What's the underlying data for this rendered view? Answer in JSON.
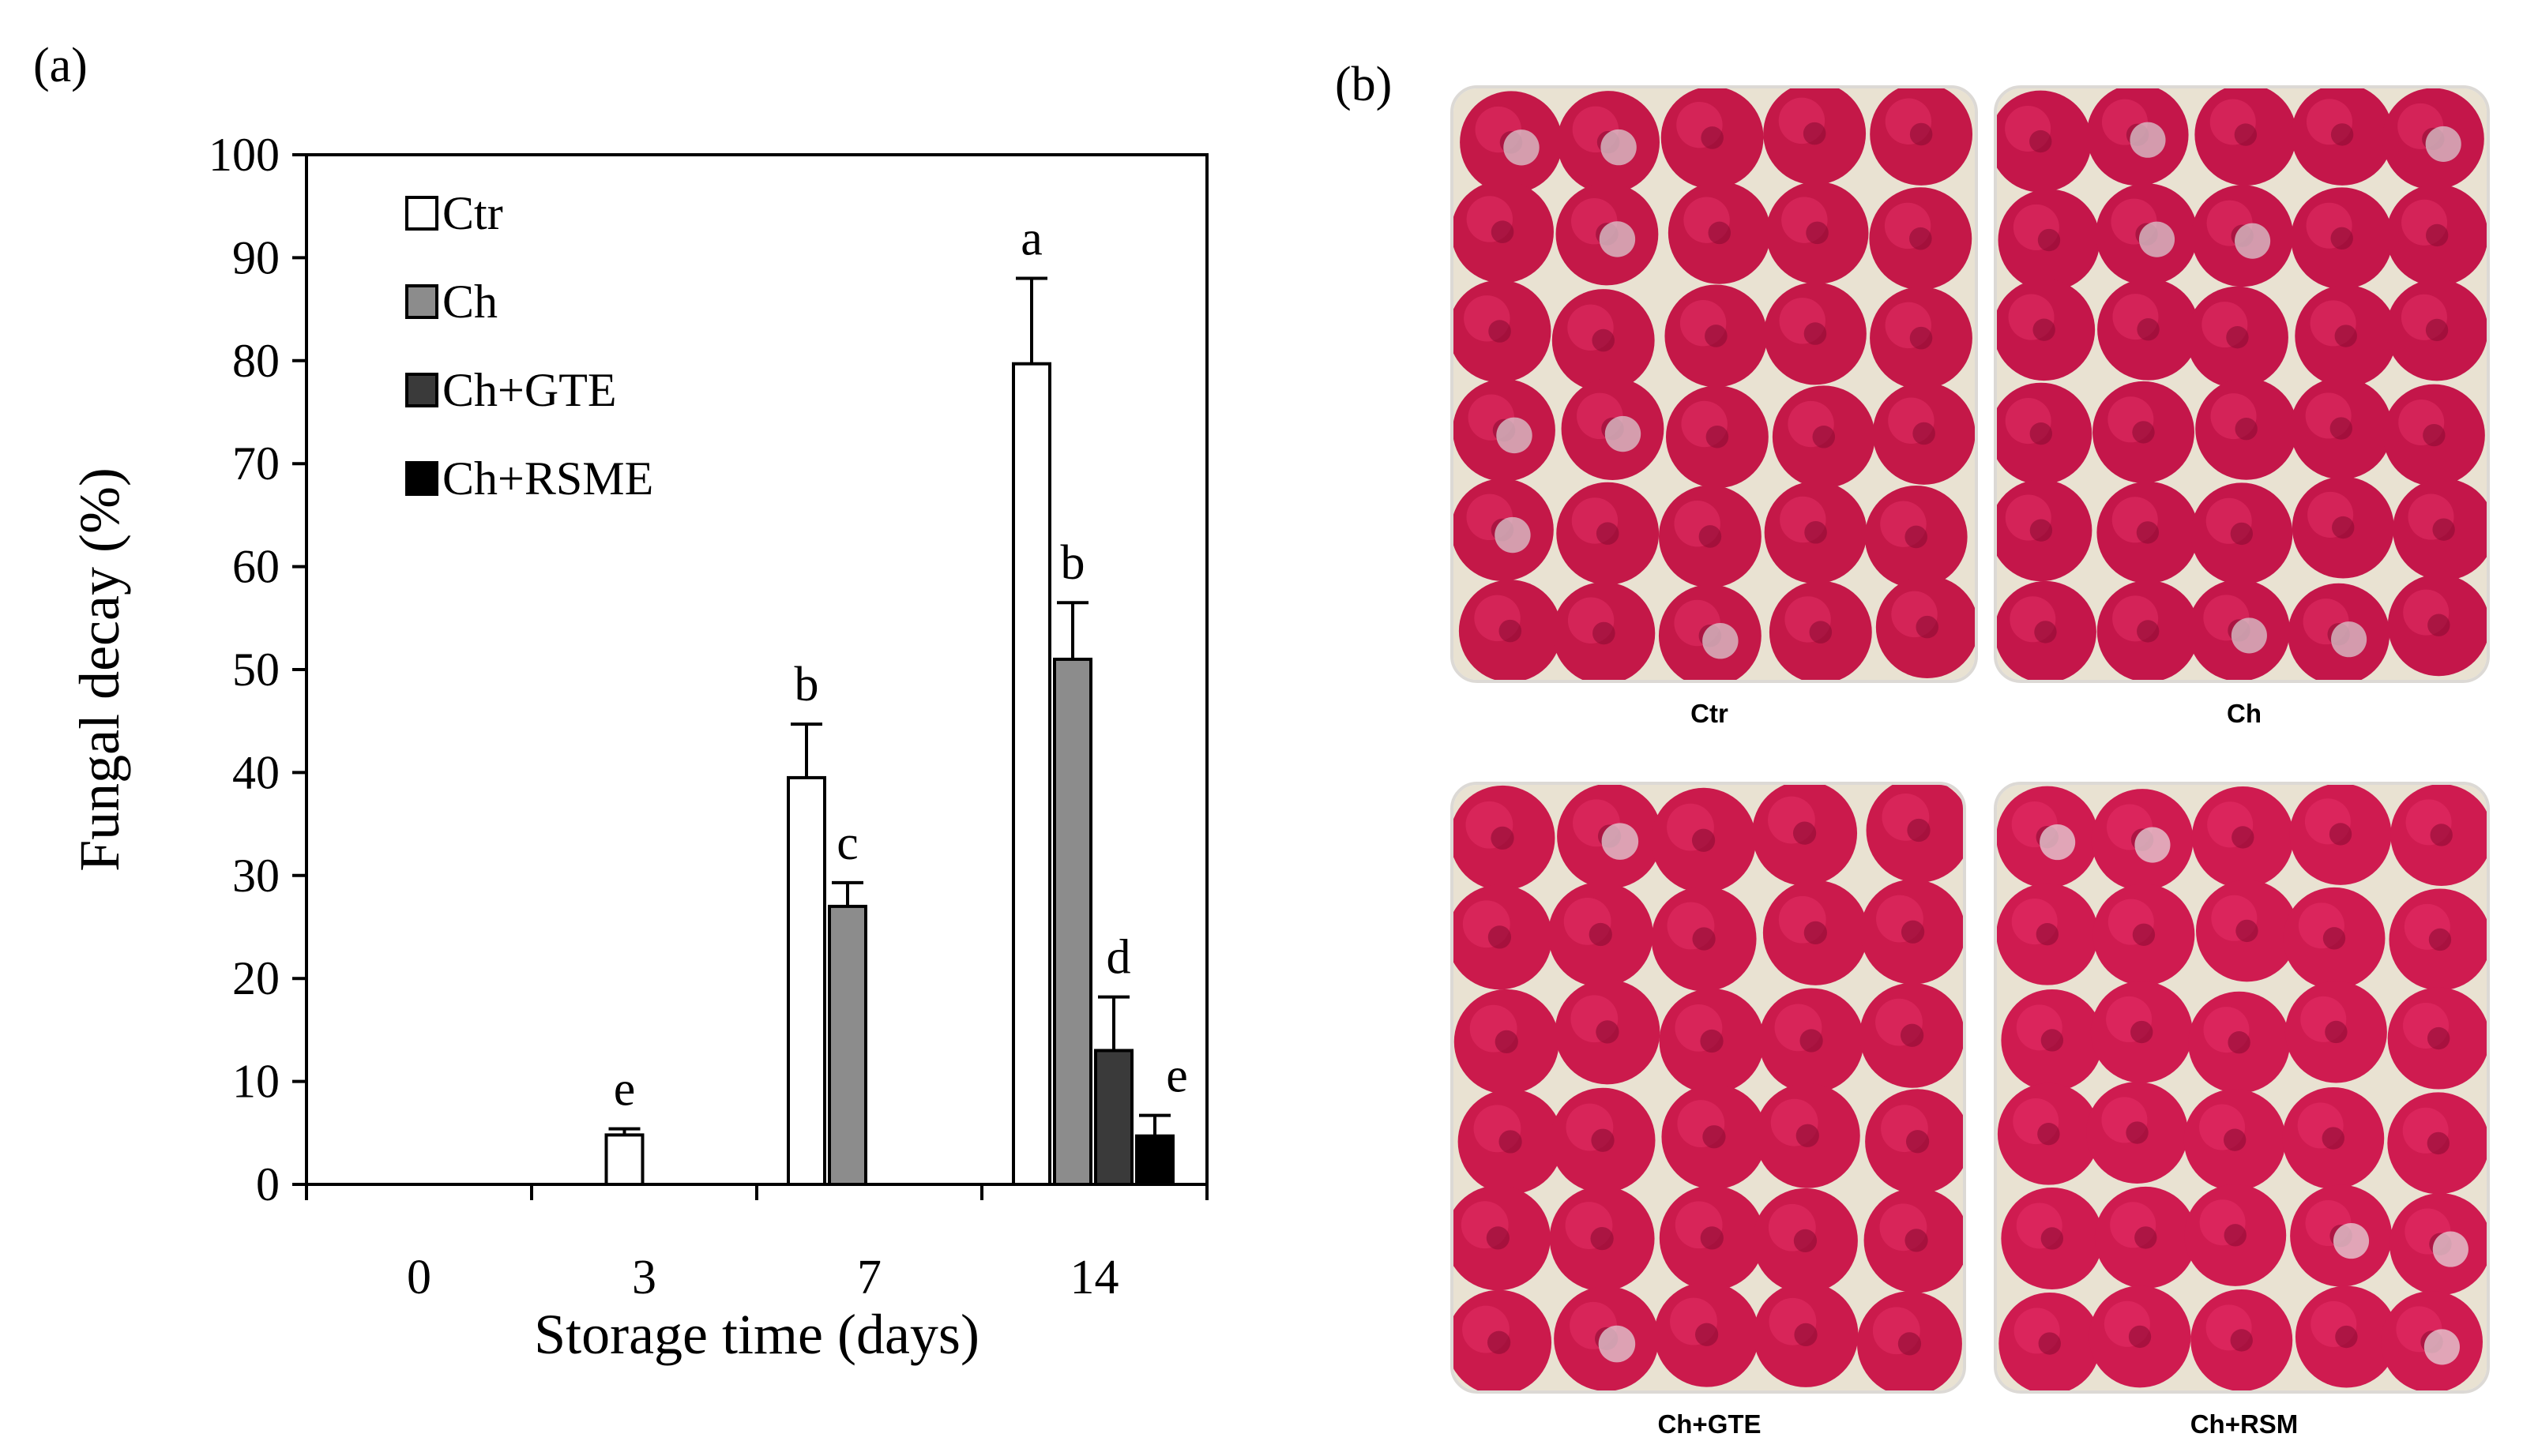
{
  "panel_a_label": "(a)",
  "panel_b_label": "(b)",
  "chart_data": {
    "type": "bar",
    "xlabel": "Storage time (days)",
    "ylabel": "Fungal decay (%)",
    "ylim": [
      0,
      100
    ],
    "yticks": [
      0,
      10,
      20,
      30,
      40,
      50,
      60,
      70,
      80,
      90,
      100
    ],
    "categories": [
      "0",
      "3",
      "7",
      "14"
    ],
    "grid": false,
    "legend_position": "top-left",
    "series": [
      {
        "name": "Ctr",
        "color": "#ffffff",
        "values": [
          null,
          4.8,
          39.5,
          79.7
        ],
        "errors": [
          null,
          0.6,
          5.2,
          8.3
        ],
        "labels": [
          "",
          "e",
          "b",
          "a"
        ]
      },
      {
        "name": "Ch",
        "color": "#8c8c8c",
        "values": [
          null,
          null,
          27.0,
          51.0
        ],
        "errors": [
          null,
          null,
          2.3,
          5.5
        ],
        "labels": [
          "",
          "",
          "c",
          "b"
        ]
      },
      {
        "name": "Ch+GTE",
        "color": "#3a3a3a",
        "values": [
          null,
          null,
          null,
          13.0
        ],
        "errors": [
          null,
          null,
          null,
          5.2
        ],
        "labels": [
          "",
          "",
          "",
          "d"
        ]
      },
      {
        "name": "Ch+RSME",
        "color": "#000000",
        "values": [
          null,
          null,
          null,
          4.7
        ],
        "errors": [
          null,
          null,
          null,
          2.0
        ],
        "labels": [
          "",
          "",
          "",
          "e"
        ]
      }
    ]
  },
  "photos": [
    {
      "caption": "Ctr",
      "berry_color": "#c41848",
      "mold_color": "#ddd6d8"
    },
    {
      "caption": "Ch",
      "berry_color": "#c4164a",
      "mold_color": "#dcd4d7"
    },
    {
      "caption": "Ch+GTE",
      "berry_color": "#cb1a4c",
      "mold_color": "#e4dcdf"
    },
    {
      "caption": "Ch+RSM",
      "berry_color": "#cf1b50",
      "mold_color": "#e8e0e3"
    }
  ]
}
